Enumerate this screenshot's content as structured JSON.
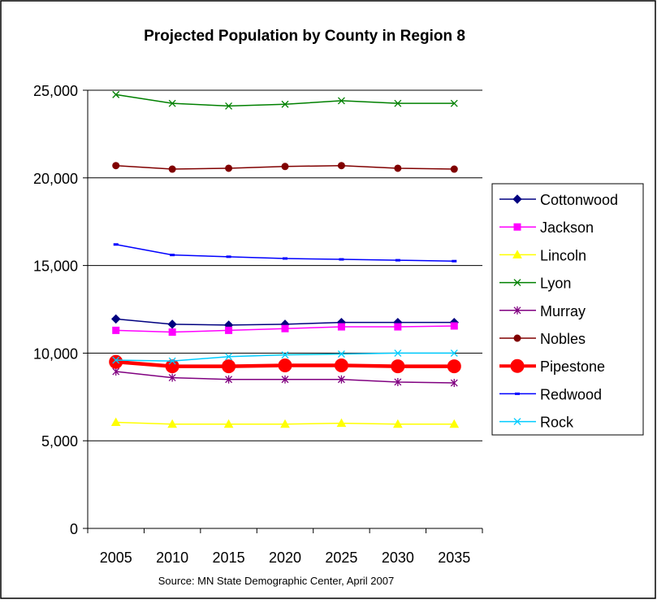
{
  "chart_data": {
    "type": "line",
    "title": "Projected Population by County in Region 8",
    "source": "Source: MN State Demographic Center, April 2007",
    "xlabel": "",
    "ylabel": "",
    "categories": [
      "2005",
      "2010",
      "2015",
      "2020",
      "2025",
      "2030",
      "2035"
    ],
    "ylim": [
      0,
      25000
    ],
    "yticks": [
      0,
      5000,
      10000,
      15000,
      20000,
      25000
    ],
    "ytick_labels": [
      "0",
      "5,000",
      "10,000",
      "15,000",
      "20,000",
      "25,000"
    ],
    "grid": "horizontal",
    "legend_position": "right",
    "series": [
      {
        "name": "Cottonwood",
        "color": "#000080",
        "marker": "diamond",
        "values": [
          11950,
          11650,
          11600,
          11650,
          11750,
          11750,
          11750
        ]
      },
      {
        "name": "Jackson",
        "color": "#ff00ff",
        "marker": "square",
        "values": [
          11300,
          11200,
          11300,
          11400,
          11500,
          11500,
          11550
        ]
      },
      {
        "name": "Lincoln",
        "color": "#ffff00",
        "marker": "triangle",
        "values": [
          6050,
          5950,
          5950,
          5950,
          6000,
          5950,
          5950
        ]
      },
      {
        "name": "Lyon",
        "color": "#008000",
        "marker": "x",
        "values": [
          24750,
          24250,
          24100,
          24200,
          24400,
          24250,
          24250
        ]
      },
      {
        "name": "Murray",
        "color": "#800080",
        "marker": "star",
        "values": [
          8950,
          8600,
          8500,
          8500,
          8500,
          8350,
          8300
        ]
      },
      {
        "name": "Nobles",
        "color": "#800000",
        "marker": "circle",
        "values": [
          20700,
          20500,
          20550,
          20650,
          20700,
          20550,
          20500
        ]
      },
      {
        "name": "Pipestone",
        "color": "#ff0000",
        "marker": "circle",
        "bold": true,
        "values": [
          9500,
          9250,
          9250,
          9300,
          9300,
          9250,
          9250
        ]
      },
      {
        "name": "Redwood",
        "color": "#0000ff",
        "marker": "dash",
        "values": [
          16200,
          15600,
          15500,
          15400,
          15350,
          15300,
          15250
        ]
      },
      {
        "name": "Rock",
        "color": "#00ccff",
        "marker": "x",
        "values": [
          9600,
          9550,
          9800,
          9900,
          9950,
          10000,
          10000
        ]
      }
    ]
  }
}
